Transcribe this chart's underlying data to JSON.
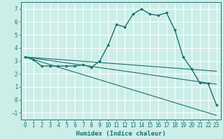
{
  "xlabel": "Humidex (Indice chaleur)",
  "background_color": "#cceee8",
  "grid_color": "#ffffff",
  "line_color": "#1a7070",
  "xlim": [
    -0.5,
    23.5
  ],
  "ylim": [
    -1.5,
    7.5
  ],
  "yticks": [
    -1,
    0,
    1,
    2,
    3,
    4,
    5,
    6,
    7
  ],
  "xticks": [
    0,
    1,
    2,
    3,
    4,
    5,
    6,
    7,
    8,
    9,
    10,
    11,
    12,
    13,
    14,
    15,
    16,
    17,
    18,
    19,
    20,
    21,
    22,
    23
  ],
  "series": [
    {
      "x": [
        0,
        1,
        2,
        3,
        4,
        5,
        6,
        7,
        8,
        9,
        10,
        11,
        12,
        13,
        14,
        15,
        16,
        17,
        18,
        19,
        20,
        21,
        22,
        23
      ],
      "y": [
        3.3,
        3.1,
        2.6,
        2.6,
        2.6,
        2.6,
        2.6,
        2.7,
        2.5,
        3.0,
        4.2,
        5.8,
        5.6,
        6.6,
        7.0,
        6.6,
        6.5,
        6.7,
        5.4,
        3.3,
        2.4,
        1.3,
        1.25,
        -0.4
      ],
      "marker": "D",
      "markersize": 2.0,
      "linewidth": 1.0,
      "has_marker": true
    },
    {
      "x": [
        0,
        23
      ],
      "y": [
        3.3,
        -1.2
      ],
      "linewidth": 0.8,
      "has_marker": false
    },
    {
      "x": [
        0,
        23
      ],
      "y": [
        3.3,
        2.2
      ],
      "linewidth": 0.8,
      "has_marker": false
    },
    {
      "x": [
        0,
        23
      ],
      "y": [
        3.3,
        1.2
      ],
      "linewidth": 0.8,
      "has_marker": false
    }
  ]
}
